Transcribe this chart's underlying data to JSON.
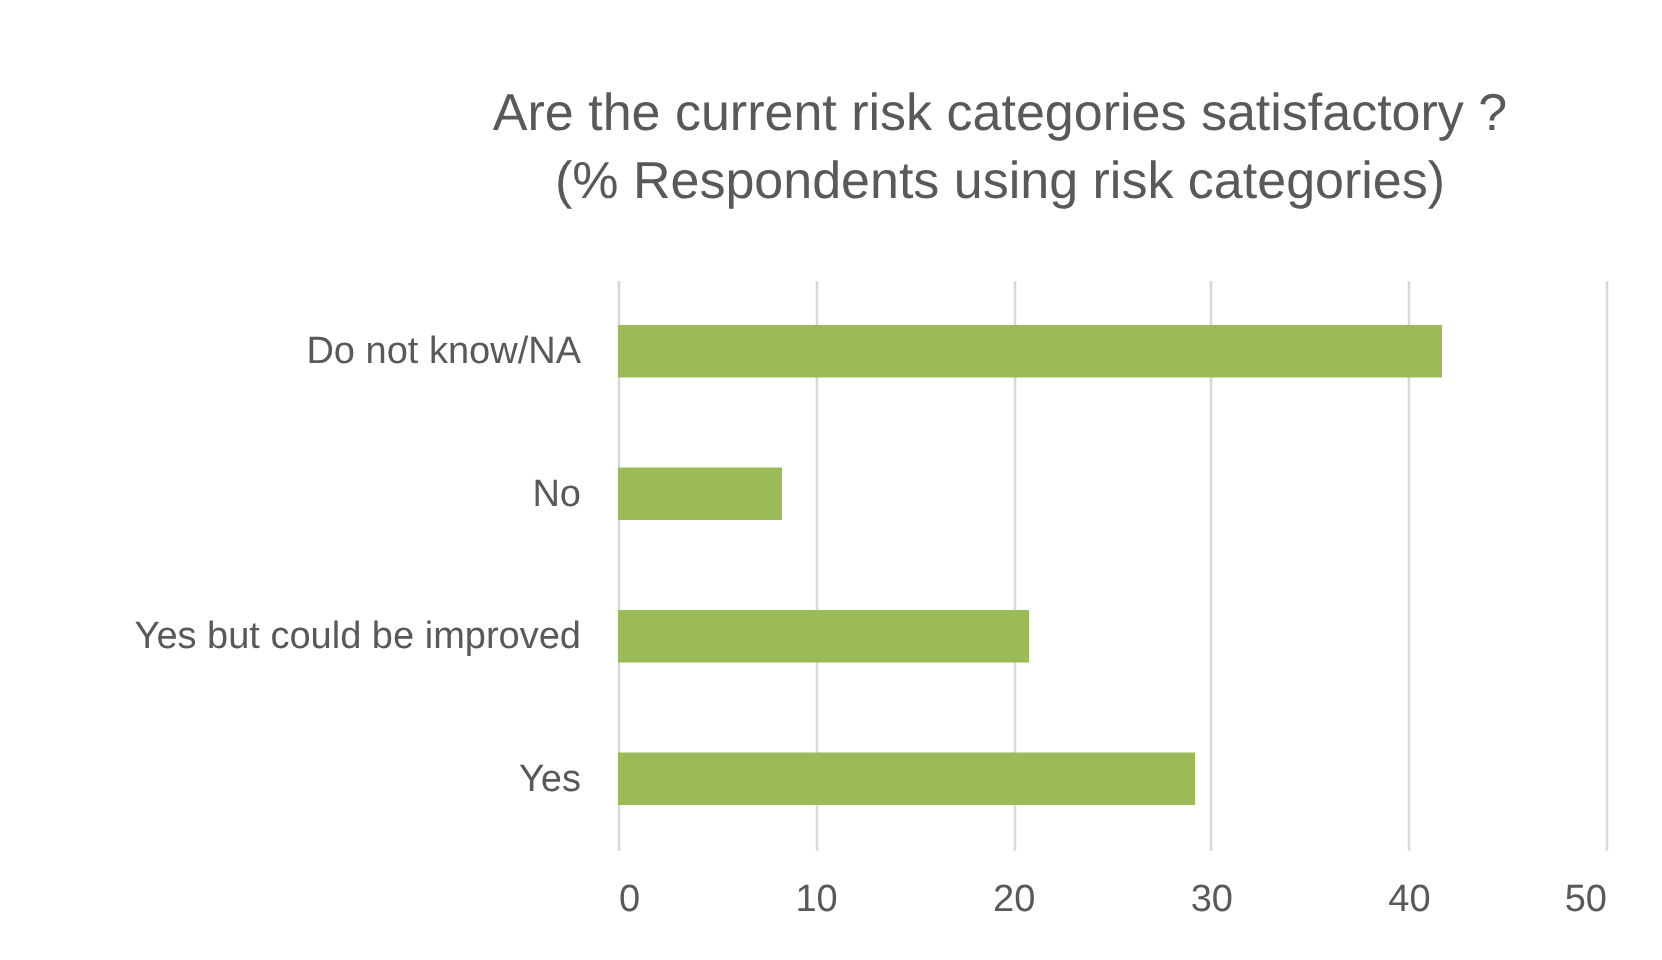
{
  "chart_data": {
    "type": "bar",
    "orientation": "horizontal",
    "title": "Are the current risk categories satisfactory ?",
    "subtitle": "(% Respondents using risk categories)",
    "categories": [
      "Do not know/NA",
      "No",
      "Yes but could be improved",
      "Yes"
    ],
    "values": [
      41.7,
      8.3,
      20.8,
      29.2
    ],
    "color": "#9bbb59",
    "xlim": [
      0,
      50
    ],
    "xticks": [
      0,
      10,
      20,
      30,
      40,
      50
    ],
    "grid": "x"
  }
}
